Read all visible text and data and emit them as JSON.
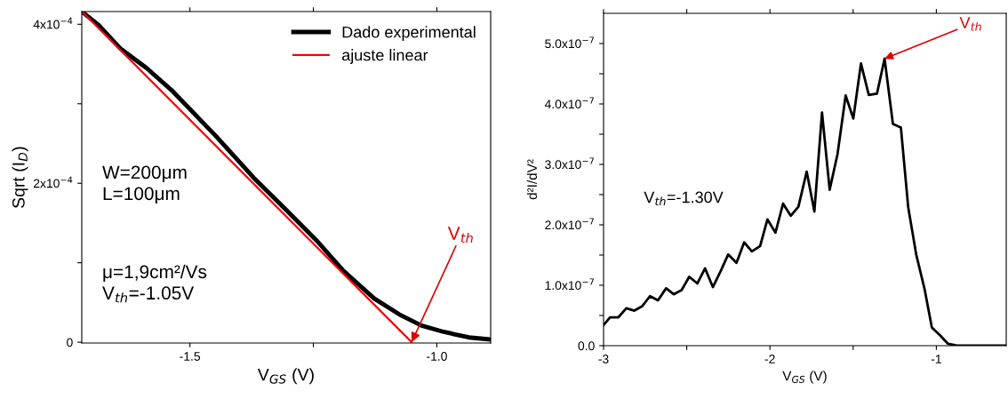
{
  "chart_data": [
    {
      "type": "line",
      "xlabel": "V$_{GS}$ (V)",
      "ylabel": "Sqrt (I$_{D}$)",
      "legend": "top right",
      "grid": false,
      "xlim": [
        -1.719,
        -0.891
      ],
      "ylim": [
        -1e-06,
        0.000416
      ],
      "xticks": [
        -1.5,
        {
          "value": -1.25,
          "label": null
        },
        {
          "value": -1.0,
          "label": "-1.0"
        }
      ],
      "yticks": [
        {
          "value": 0,
          "label": "0"
        },
        {
          "value": 0.0001,
          "label": null
        },
        {
          "value": 0.0002,
          "label": "2x10$^{−4}$"
        },
        {
          "value": 0.0003,
          "label": null
        },
        {
          "value": 0.0004,
          "label": "4x10$^{−4}$"
        }
      ],
      "series": [
        {
          "name": "Dado experimental",
          "color": "#000000",
          "x": [
            -1.717,
            -1.685,
            -1.64,
            -1.588,
            -1.537,
            -1.447,
            -1.371,
            -1.306,
            -1.242,
            -1.191,
            -1.127,
            -1.076,
            -1.031,
            -0.986,
            -0.935,
            -0.892
          ],
          "values": [
            0.000415,
            0.000399,
            0.000369,
            0.000345,
            0.000317,
            0.000259,
            0.000207,
            0.000167,
            0.000127,
            9.1e-05,
            5.5e-05,
            3.5e-05,
            2.1e-05,
            1.3e-05,
            6e-06,
            3.6e-06
          ]
        },
        {
          "name": "ajuste linear",
          "color": "#ff0000",
          "x": [
            -1.717,
            -1.051
          ],
          "values": [
            0.000415,
            0
          ]
        }
      ],
      "annotations": [
        "W=200μm\nL=100μm",
        "μ=1,9cm²/Vs\nV$_{th}$=-1.05V",
        {
          "text": "V$_{th}$",
          "x": -1.051,
          "y": 0
        }
      ]
    },
    {
      "type": "line",
      "xlabel": "V$_{GS}$ (V)",
      "ylabel": "d²I/dV²",
      "grid": false,
      "xlim": [
        -3,
        -0.58
      ],
      "ylim": [
        0,
        5.5e-07
      ],
      "xticks": [
        -3,
        {
          "value": -2.5,
          "label": null
        },
        -2,
        {
          "value": -1.5,
          "label": null
        },
        -1
      ],
      "yticks": [
        {
          "value": 0,
          "label": "0.0"
        },
        {
          "value": 5e-08,
          "label": null
        },
        {
          "value": 1e-07,
          "label": "1.0x10$^{−7}$"
        },
        {
          "value": 1.5e-07,
          "label": null
        },
        {
          "value": 2e-07,
          "label": "2.0x10$^{−7}$"
        },
        {
          "value": 2.5e-07,
          "label": null
        },
        {
          "value": 3e-07,
          "label": "3.0x10$^{−7}$"
        },
        {
          "value": 3.5e-07,
          "label": null
        },
        {
          "value": 4e-07,
          "label": "4.0x10$^{−7}$"
        },
        {
          "value": 4.5e-07,
          "label": null
        },
        {
          "value": 5e-07,
          "label": "5.0x10$^{−7}$"
        }
      ],
      "series": [
        {
          "color": "#000000",
          "x": [
            -3.0,
            -2.961,
            -2.911,
            -2.863,
            -2.815,
            -2.769,
            -2.721,
            -2.673,
            -2.624,
            -2.578,
            -2.531,
            -2.485,
            -2.436,
            -2.39,
            -2.343,
            -2.295,
            -2.251,
            -2.201,
            -2.155,
            -2.109,
            -2.059,
            -2.015,
            -1.967,
            -1.921,
            -1.875,
            -1.829,
            -1.779,
            -1.733,
            -1.687,
            -1.641,
            -1.594,
            -1.545,
            -1.499,
            -1.453,
            -1.406,
            -1.357,
            -1.311,
            -1.261,
            -1.213,
            -1.169,
            -1.121,
            -1.071,
            -1.027,
            -0.977,
            -0.929,
            -0.881,
            -0.831,
            -0.58
          ],
          "values": [
            3.4e-08,
            4.7e-08,
            4.7e-08,
            6.2e-08,
            5.8e-08,
            6.5e-08,
            8.2e-08,
            7.5e-08,
            9.5e-08,
            8.5e-08,
            9.2e-08,
            1.14e-07,
            1.03e-07,
            1.28e-07,
            9.7e-08,
            1.24e-07,
            1.51e-07,
            1.37e-07,
            1.71e-07,
            1.56e-07,
            1.65e-07,
            2.09e-07,
            1.87e-07,
            2.35e-07,
            2.15e-07,
            2.3e-07,
            2.88e-07,
            2.22e-07,
            3.86e-07,
            2.58e-07,
            3.17e-07,
            4.14e-07,
            3.76e-07,
            4.67e-07,
            4.15e-07,
            4.17e-07,
            4.75e-07,
            3.67e-07,
            3.61e-07,
            2.29e-07,
            1.51e-07,
            9.4e-08,
            3e-08,
            1.7e-08,
            3e-09,
            5e-10,
            0,
            0
          ]
        }
      ],
      "annotations": [
        "V$_{th}$=-1.30V",
        {
          "text": "V$_{th}$",
          "x": -1.311,
          "y": 4.75e-07
        }
      ]
    }
  ]
}
